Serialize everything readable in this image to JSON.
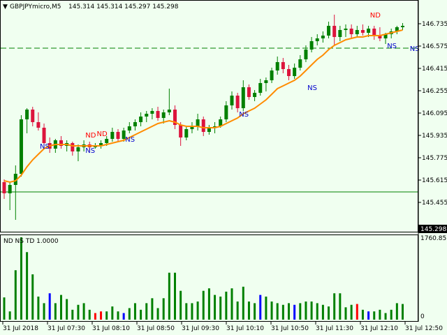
{
  "header": {
    "symbol": "GBPJPYmicro,M5",
    "ohlc": "145.314 145.314 145.297 145.298"
  },
  "indicator": {
    "title": "ND NS TD 1.0000",
    "max_label": "1760.85",
    "zero_label": "0"
  },
  "price_axis": {
    "labels": [
      "146.735",
      "146.575",
      "146.415",
      "146.255",
      "146.095",
      "145.935",
      "145.775",
      "145.615",
      "145.455"
    ],
    "current": "145.298"
  },
  "time_axis": {
    "labels": [
      "31 Jul 2018",
      "31 Jul 07:30",
      "31 Jul 08:10",
      "31 Jul 08:50",
      "31 Jul 09:30",
      "31 Jul 10:10",
      "31 Jul 10:50",
      "31 Jul 11:30",
      "31 Jul 12:10",
      "31 Jul 12:50"
    ]
  },
  "colors": {
    "bull": "#008000",
    "bear": "#dc143c",
    "ma": "#ff8c00",
    "vol_green": "#008000",
    "vol_blue": "#0000ff",
    "vol_red": "#ff0000",
    "ns_label": "#0000cd",
    "nd_label": "#ff0000",
    "grid_green": "#008000"
  },
  "chart_data": {
    "type": "candlestick",
    "ylim": [
      145.3,
      146.8
    ],
    "dashed_level": 146.56,
    "solid_level": 145.53,
    "candles": [
      [
        145.6,
        145.62,
        145.48,
        145.52
      ],
      [
        145.52,
        145.6,
        145.4,
        145.58
      ],
      [
        145.58,
        145.72,
        145.33,
        145.66
      ],
      [
        145.66,
        146.08,
        145.64,
        146.05
      ],
      [
        146.05,
        146.13,
        145.95,
        146.12
      ],
      [
        146.12,
        146.14,
        146.0,
        146.03
      ],
      [
        146.03,
        146.1,
        145.97,
        145.99
      ],
      [
        145.99,
        146.02,
        145.84,
        145.88
      ],
      [
        145.88,
        145.92,
        145.81,
        145.84
      ],
      [
        145.84,
        145.91,
        145.81,
        145.9
      ],
      [
        145.9,
        145.93,
        145.84,
        145.86
      ],
      [
        145.86,
        145.9,
        145.82,
        145.88
      ],
      [
        145.88,
        145.89,
        145.79,
        145.82
      ],
      [
        145.82,
        145.87,
        145.75,
        145.85
      ],
      [
        145.85,
        145.9,
        145.82,
        145.87
      ],
      [
        145.87,
        145.89,
        145.82,
        145.85
      ],
      [
        145.85,
        145.88,
        145.84,
        145.86
      ],
      [
        145.86,
        145.9,
        145.84,
        145.88
      ],
      [
        145.88,
        145.93,
        145.86,
        145.91
      ],
      [
        145.91,
        145.99,
        145.89,
        145.96
      ],
      [
        145.96,
        145.98,
        145.89,
        145.91
      ],
      [
        145.91,
        145.99,
        145.89,
        145.97
      ],
      [
        145.97,
        146.03,
        145.95,
        146.0
      ],
      [
        146.0,
        146.05,
        145.97,
        146.03
      ],
      [
        146.03,
        146.1,
        146.0,
        146.07
      ],
      [
        146.07,
        146.11,
        146.03,
        146.09
      ],
      [
        146.09,
        146.13,
        146.05,
        146.11
      ],
      [
        146.11,
        146.14,
        146.04,
        146.06
      ],
      [
        146.06,
        146.12,
        146.02,
        146.1
      ],
      [
        146.1,
        146.27,
        146.08,
        146.12
      ],
      [
        146.12,
        146.15,
        145.98,
        146.01
      ],
      [
        146.01,
        146.03,
        145.86,
        145.92
      ],
      [
        145.92,
        146.0,
        145.9,
        145.98
      ],
      [
        145.98,
        146.03,
        145.95,
        146.0
      ],
      [
        146.0,
        146.09,
        145.97,
        146.05
      ],
      [
        146.05,
        146.07,
        145.93,
        145.96
      ],
      [
        145.96,
        146.01,
        145.94,
        145.99
      ],
      [
        145.99,
        146.03,
        145.95,
        146.0
      ],
      [
        146.0,
        146.07,
        145.99,
        146.05
      ],
      [
        146.05,
        146.18,
        146.03,
        146.15
      ],
      [
        146.15,
        146.25,
        146.12,
        146.22
      ],
      [
        146.22,
        146.24,
        146.1,
        146.13
      ],
      [
        146.13,
        146.33,
        146.11,
        146.28
      ],
      [
        146.28,
        146.3,
        146.19,
        146.21
      ],
      [
        146.21,
        146.26,
        146.18,
        146.24
      ],
      [
        146.24,
        146.34,
        146.22,
        146.31
      ],
      [
        146.31,
        146.35,
        146.25,
        146.33
      ],
      [
        146.33,
        146.42,
        146.31,
        146.4
      ],
      [
        146.4,
        146.5,
        146.37,
        146.46
      ],
      [
        146.46,
        146.49,
        146.38,
        146.41
      ],
      [
        146.41,
        146.44,
        146.33,
        146.36
      ],
      [
        146.36,
        146.45,
        146.34,
        146.42
      ],
      [
        146.42,
        146.51,
        146.4,
        146.48
      ],
      [
        146.48,
        146.58,
        146.46,
        146.55
      ],
      [
        146.55,
        146.64,
        146.53,
        146.61
      ],
      [
        146.61,
        146.66,
        146.58,
        146.63
      ],
      [
        146.63,
        146.68,
        146.6,
        146.65
      ],
      [
        146.65,
        146.75,
        146.63,
        146.72
      ],
      [
        146.72,
        146.8,
        146.58,
        146.64
      ],
      [
        146.64,
        146.72,
        146.61,
        146.69
      ],
      [
        146.69,
        146.73,
        146.64,
        146.7
      ],
      [
        146.7,
        146.73,
        146.63,
        146.66
      ],
      [
        146.66,
        146.72,
        146.64,
        146.69
      ],
      [
        146.69,
        146.73,
        146.65,
        146.67
      ],
      [
        146.67,
        146.72,
        146.64,
        146.7
      ],
      [
        146.7,
        146.72,
        146.62,
        146.65
      ],
      [
        146.65,
        146.71,
        146.61,
        146.63
      ],
      [
        146.63,
        146.67,
        146.59,
        146.66
      ],
      [
        146.66,
        146.7,
        146.63,
        146.68
      ],
      [
        146.68,
        146.72,
        146.66,
        146.71
      ],
      [
        146.71,
        146.74,
        146.69,
        146.72
      ]
    ],
    "ma": [
      145.61,
      145.6,
      145.61,
      145.65,
      145.71,
      145.76,
      145.8,
      145.84,
      145.86,
      145.87,
      145.87,
      145.87,
      145.86,
      145.86,
      145.86,
      145.86,
      145.86,
      145.86,
      145.87,
      145.88,
      145.89,
      145.9,
      145.92,
      145.94,
      145.96,
      145.98,
      146.0,
      146.02,
      146.03,
      146.04,
      146.03,
      146.01,
      146.0,
      146.0,
      146.0,
      145.99,
      145.99,
      145.99,
      146.0,
      146.02,
      146.04,
      146.06,
      146.09,
      146.11,
      146.13,
      146.16,
      146.19,
      146.23,
      146.27,
      146.29,
      146.31,
      146.33,
      146.36,
      146.4,
      146.44,
      146.48,
      146.51,
      146.55,
      146.58,
      146.6,
      146.62,
      146.63,
      146.64,
      146.64,
      146.65,
      146.65,
      146.65,
      146.66,
      146.67,
      146.68,
      146.69
    ],
    "volume": [
      [
        0.27,
        "g"
      ],
      [
        0.1,
        "g"
      ],
      [
        0.6,
        "g"
      ],
      [
        1.0,
        "g"
      ],
      [
        0.82,
        "g"
      ],
      [
        0.55,
        "g"
      ],
      [
        0.28,
        "g"
      ],
      [
        0.2,
        "g"
      ],
      [
        0.32,
        "b"
      ],
      [
        0.2,
        "g"
      ],
      [
        0.3,
        "g"
      ],
      [
        0.25,
        "g"
      ],
      [
        0.12,
        "g"
      ],
      [
        0.18,
        "g"
      ],
      [
        0.2,
        "g"
      ],
      [
        0.12,
        "g"
      ],
      [
        0.08,
        "r"
      ],
      [
        0.1,
        "r"
      ],
      [
        0.1,
        "g"
      ],
      [
        0.16,
        "g"
      ],
      [
        0.1,
        "g"
      ],
      [
        0.08,
        "b"
      ],
      [
        0.14,
        "g"
      ],
      [
        0.2,
        "g"
      ],
      [
        0.12,
        "g"
      ],
      [
        0.2,
        "g"
      ],
      [
        0.26,
        "g"
      ],
      [
        0.14,
        "g"
      ],
      [
        0.26,
        "g"
      ],
      [
        0.57,
        "g"
      ],
      [
        0.57,
        "g"
      ],
      [
        0.35,
        "g"
      ],
      [
        0.2,
        "g"
      ],
      [
        0.2,
        "g"
      ],
      [
        0.22,
        "g"
      ],
      [
        0.35,
        "g"
      ],
      [
        0.38,
        "g"
      ],
      [
        0.3,
        "g"
      ],
      [
        0.28,
        "g"
      ],
      [
        0.34,
        "g"
      ],
      [
        0.38,
        "g"
      ],
      [
        0.22,
        "g"
      ],
      [
        0.4,
        "g"
      ],
      [
        0.22,
        "g"
      ],
      [
        0.2,
        "g"
      ],
      [
        0.3,
        "b"
      ],
      [
        0.28,
        "g"
      ],
      [
        0.22,
        "g"
      ],
      [
        0.2,
        "g"
      ],
      [
        0.18,
        "g"
      ],
      [
        0.2,
        "g"
      ],
      [
        0.18,
        "b"
      ],
      [
        0.2,
        "g"
      ],
      [
        0.22,
        "g"
      ],
      [
        0.22,
        "g"
      ],
      [
        0.2,
        "g"
      ],
      [
        0.18,
        "g"
      ],
      [
        0.16,
        "g"
      ],
      [
        0.32,
        "g"
      ],
      [
        0.32,
        "g"
      ],
      [
        0.15,
        "g"
      ],
      [
        0.18,
        "g"
      ],
      [
        0.19,
        "r"
      ],
      [
        0.12,
        "g"
      ],
      [
        0.1,
        "b"
      ],
      [
        0.1,
        "g"
      ],
      [
        0.12,
        "g"
      ],
      [
        0.08,
        "g"
      ],
      [
        0.12,
        "g"
      ],
      [
        0.2,
        "g"
      ],
      [
        0.19,
        "g"
      ]
    ],
    "annotations": [
      {
        "text": "NS",
        "i": 7,
        "price": 145.84,
        "color": "ns"
      },
      {
        "text": "ND",
        "i": 15,
        "price": 145.92,
        "color": "nd"
      },
      {
        "text": "NS",
        "i": 15,
        "price": 145.81,
        "color": "ns"
      },
      {
        "text": "ND",
        "i": 17,
        "price": 145.93,
        "color": "nd"
      },
      {
        "text": "NS",
        "i": 22,
        "price": 145.89,
        "color": "ns"
      },
      {
        "text": "NS",
        "i": 42,
        "price": 146.07,
        "color": "ns"
      },
      {
        "text": "NS",
        "i": 54,
        "price": 146.26,
        "color": "ns"
      },
      {
        "text": "ND",
        "i": 65,
        "price": 146.78,
        "color": "nd"
      },
      {
        "text": "NS",
        "i": 68,
        "price": 146.56,
        "color": "ns"
      },
      {
        "text": "NS",
        "i": 72,
        "price": 146.54,
        "color": "ns"
      }
    ]
  }
}
